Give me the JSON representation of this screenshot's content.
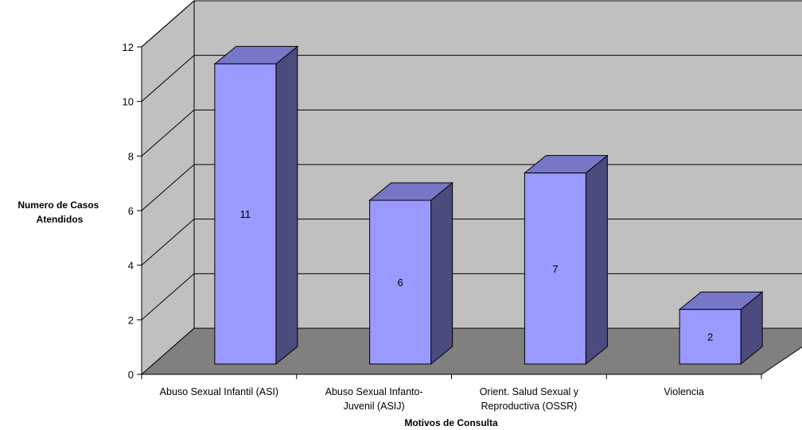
{
  "chart_data": {
    "type": "bar",
    "style": "3d-column",
    "categories": [
      [
        "Abuso Sexual Infantil (ASI)"
      ],
      [
        "Abuso Sexual Infanto-",
        "Juvenil (ASIJ)"
      ],
      [
        "Orient. Salud Sexual y",
        "Reproductiva (OSSR)"
      ],
      [
        "Violencia"
      ]
    ],
    "values": [
      11,
      6,
      7,
      2
    ],
    "xlabel": "Motivos de Consulta",
    "ylabel": [
      "Numero de Casos",
      "Atendidos"
    ],
    "ylim": [
      0,
      12
    ],
    "yticks": [
      0,
      2,
      4,
      6,
      8,
      10,
      12
    ],
    "grid": true,
    "legend": "none",
    "colors": {
      "bar_front": "#9999ff",
      "bar_side": "#4b4b7e",
      "bar_top": "#7777c8",
      "wall": "#c0c0c0",
      "floor": "#808080",
      "outline": "#000000"
    }
  }
}
